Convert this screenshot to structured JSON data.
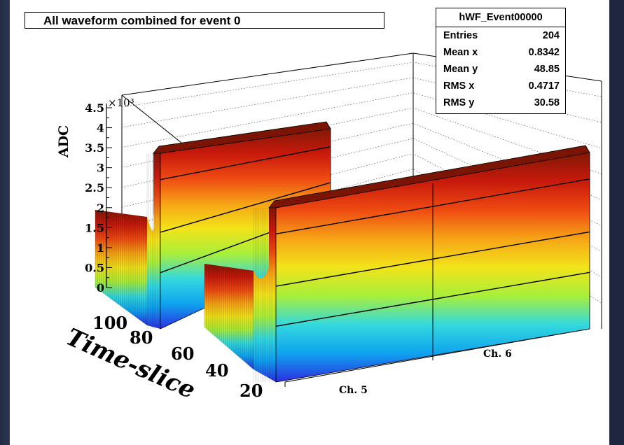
{
  "slide": {
    "background": "#1f2740"
  },
  "title": "All waveform combined for event 0",
  "stats": {
    "name": "hWF_Event00000",
    "rows": [
      {
        "label": "Entries",
        "value": "204"
      },
      {
        "label": "Mean x",
        "value": "0.8342"
      },
      {
        "label": "Mean y",
        "value": "48.85"
      },
      {
        "label": "RMS x",
        "value": "0.4717"
      },
      {
        "label": "RMS y",
        "value": "30.58"
      }
    ]
  },
  "chart_data": {
    "type": "lego3d",
    "title": "All waveform combined for event 0",
    "zlabel": "ADC",
    "ylabel": "Time-slice",
    "xlabel": "",
    "z_multiplier": "×10³",
    "z_ticks": [
      "0",
      "0.5",
      "1",
      "1.5",
      "2",
      "2.5",
      "3",
      "3.5",
      "4",
      "4.5"
    ],
    "zlim": [
      0,
      4500
    ],
    "y_ticks": [
      "100",
      "80",
      "60",
      "40",
      "20"
    ],
    "channels": [
      "Ch. 5",
      "Ch. 6"
    ],
    "palette": [
      "#2b2ee0",
      "#0fa3ef",
      "#33d9de",
      "#a8ef3a",
      "#f2e41a",
      "#f7a416",
      "#ee4a12",
      "#c8190c",
      "#821804"
    ],
    "series": [
      {
        "name": "Ch. 5",
        "baseline_adc": 1900,
        "plateau_adc": 3800,
        "rise_timeslice": 45,
        "timeslices": [
          10,
          100
        ]
      },
      {
        "name": "Ch. 6",
        "baseline_adc": 1900,
        "plateau_adc": 3800,
        "rise_timeslice": 45,
        "timeslices": [
          10,
          100
        ]
      }
    ],
    "grid": true
  }
}
